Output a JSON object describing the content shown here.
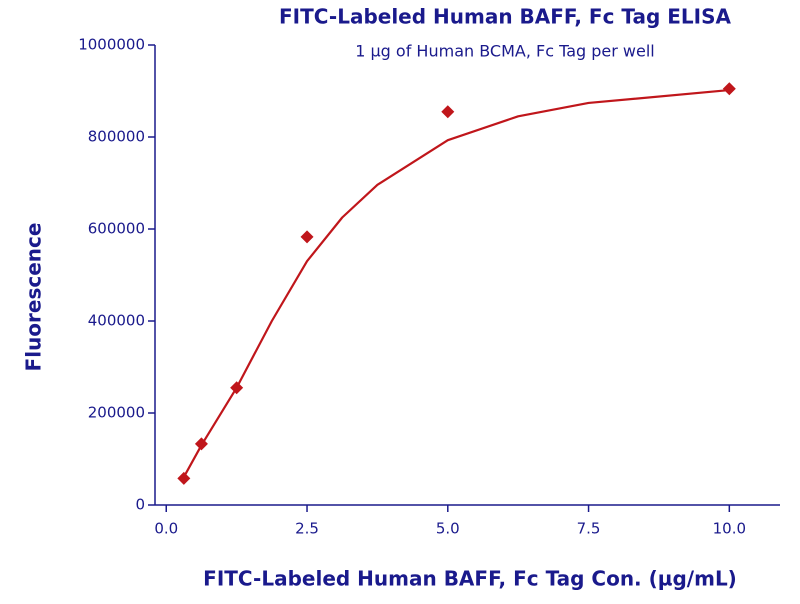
{
  "chart_data": {
    "type": "scatter",
    "title": "FITC-Labeled Human BAFF, Fc Tag ELISA",
    "subtitle": "1 µg of Human BCMA, Fc Tag per well",
    "x_label": "FITC-Labeled Human BAFF, Fc Tag Con. (µg/mL)",
    "y_label": "Fluorescence",
    "series": [
      {
        "color": "#c0161b",
        "marker": "diamond",
        "x": [
          0.3125,
          0.625,
          1.25,
          2.5,
          5,
          10
        ],
        "values": [
          58000,
          133000,
          255000,
          583000,
          855000,
          905000
        ]
      },
      {
        "color": "#c0161b",
        "marker": "line",
        "x": [
          0.3,
          0.625,
          1.25,
          1.875,
          2.5,
          3.125,
          3.75,
          5,
          6.25,
          7.5,
          10
        ],
        "values": [
          58000,
          130000,
          255000,
          400000,
          530000,
          625000,
          696000,
          793000,
          845000,
          874000,
          902000
        ]
      }
    ],
    "xlim": [
      -0.2,
      10.9
    ],
    "ylim": [
      0,
      1000000
    ],
    "xticks": [
      {
        "value": 0,
        "label": "0.0"
      },
      2.5,
      {
        "value": 5,
        "label": "5.0"
      },
      7.5,
      {
        "value": 10,
        "label": "10.0"
      }
    ],
    "yticks": [
      0,
      200000,
      400000,
      600000,
      800000,
      1000000
    ],
    "grid": false
  }
}
